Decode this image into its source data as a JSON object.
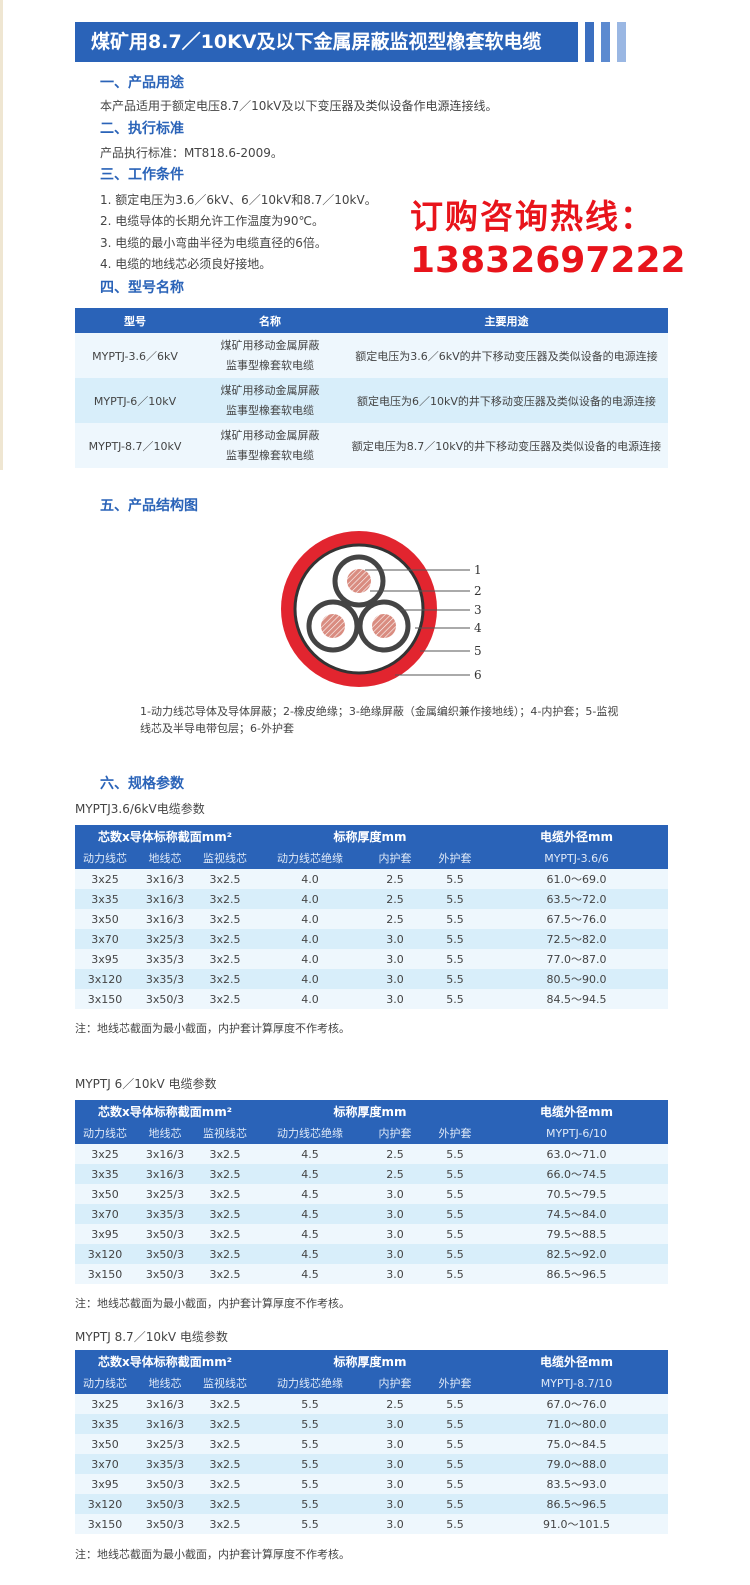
{
  "title": "煤矿用8.7／10KV及以下金属屏蔽监视型橡套软电缆",
  "colors": {
    "brand": "#2a63b8",
    "hotline": "#e8141b",
    "row_light": "#eef7fd",
    "row_dark": "#d8eefa"
  },
  "sections": {
    "s1": {
      "heading": "一、产品用途",
      "text": "本产品适用于额定电压8.7／10kV及以下变压器及类似设备作电源连接线。"
    },
    "s2": {
      "heading": "二、执行标准",
      "text": "产品执行标准：MT818.6-2009。"
    },
    "s3": {
      "heading": "三、工作条件",
      "items": [
        "1. 额定电压为3.6／6kV、6／10kV和8.7／10kV。",
        "2. 电缆导体的长期允许工作温度为90℃。",
        "3. 电缆的最小弯曲半径为电缆直径的6倍。",
        "4. 电缆的地线芯必须良好接地。"
      ]
    },
    "s4": {
      "heading": "四、型号名称"
    },
    "s5": {
      "heading": "五、产品结构图"
    },
    "s6": {
      "heading": "六、规格参数"
    }
  },
  "hotline": {
    "label": "订购咨询热线：",
    "number": "13832697222"
  },
  "model_table": {
    "headers": [
      "型号",
      "名称",
      "主要用途"
    ],
    "rows": [
      [
        "MYPTJ-3.6／6kV",
        "煤矿用移动金属屏蔽监事型橡套软电缆",
        "额定电压为3.6／6kV的井下移动变压器及类似设备的电源连接"
      ],
      [
        "MYPTJ-6／10kV",
        "煤矿用移动金属屏蔽监事型橡套软电缆",
        "额定电压为6／10kV的井下移动变压器及类似设备的电源连接"
      ],
      [
        "MYPTJ-8.7／10kV",
        "煤矿用移动金属屏蔽监事型橡套软电缆",
        "额定电压为8.7／10kV的井下移动变压器及类似设备的电源连接"
      ]
    ]
  },
  "diagram": {
    "labels": [
      "1",
      "2",
      "3",
      "4",
      "5",
      "6"
    ],
    "legend": "1-动力线芯导体及导体屏蔽；2-橡皮绝缘；3-绝缘屏蔽（金属编织兼作接地线）；4-内护套；5-监视线芯及半导电带包层；6-外护套"
  },
  "spec_header": {
    "g1": "芯数x导体标称截面mm²",
    "g2": "标称厚度mm",
    "g3": "电缆外径mm",
    "cols": [
      "动力线芯",
      "地线芯",
      "监视线芯",
      "动力线芯绝缘",
      "内护套",
      "外护套"
    ]
  },
  "spec_tables": [
    {
      "label": "MYPTJ3.6/6kV电缆参数",
      "model": "MYPTJ-3.6/6",
      "rows": [
        [
          "3x25",
          "3x16/3",
          "3x2.5",
          "4.0",
          "2.5",
          "5.5",
          "61.0～69.0"
        ],
        [
          "3x35",
          "3x16/3",
          "3x2.5",
          "4.0",
          "2.5",
          "5.5",
          "63.5～72.0"
        ],
        [
          "3x50",
          "3x16/3",
          "3x2.5",
          "4.0",
          "2.5",
          "5.5",
          "67.5～76.0"
        ],
        [
          "3x70",
          "3x25/3",
          "3x2.5",
          "4.0",
          "3.0",
          "5.5",
          "72.5～82.0"
        ],
        [
          "3x95",
          "3x35/3",
          "3x2.5",
          "4.0",
          "3.0",
          "5.5",
          "77.0～87.0"
        ],
        [
          "3x120",
          "3x35/3",
          "3x2.5",
          "4.0",
          "3.0",
          "5.5",
          "80.5～90.0"
        ],
        [
          "3x150",
          "3x50/3",
          "3x2.5",
          "4.0",
          "3.0",
          "5.5",
          "84.5～94.5"
        ]
      ],
      "note": "注：地线芯截面为最小截面，内护套计算厚度不作考核。"
    },
    {
      "label": "MYPTJ 6／10kV 电缆参数",
      "model": "MYPTJ-6/10",
      "rows": [
        [
          "3x25",
          "3x16/3",
          "3x2.5",
          "4.5",
          "2.5",
          "5.5",
          "63.0～71.0"
        ],
        [
          "3x35",
          "3x16/3",
          "3x2.5",
          "4.5",
          "2.5",
          "5.5",
          "66.0～74.5"
        ],
        [
          "3x50",
          "3x25/3",
          "3x2.5",
          "4.5",
          "3.0",
          "5.5",
          "70.5～79.5"
        ],
        [
          "3x70",
          "3x35/3",
          "3x2.5",
          "4.5",
          "3.0",
          "5.5",
          "74.5～84.0"
        ],
        [
          "3x95",
          "3x50/3",
          "3x2.5",
          "4.5",
          "3.0",
          "5.5",
          "79.5～88.5"
        ],
        [
          "3x120",
          "3x50/3",
          "3x2.5",
          "4.5",
          "3.0",
          "5.5",
          "82.5～92.0"
        ],
        [
          "3x150",
          "3x50/3",
          "3x2.5",
          "4.5",
          "3.0",
          "5.5",
          "86.5～96.5"
        ]
      ],
      "note": "注：地线芯截面为最小截面，内护套计算厚度不作考核。"
    },
    {
      "label": "MYPTJ 8.7／10kV 电缆参数",
      "model": "MYPTJ-8.7/10",
      "rows": [
        [
          "3x25",
          "3x16/3",
          "3x2.5",
          "5.5",
          "2.5",
          "5.5",
          "67.0～76.0"
        ],
        [
          "3x35",
          "3x16/3",
          "3x2.5",
          "5.5",
          "3.0",
          "5.5",
          "71.0～80.0"
        ],
        [
          "3x50",
          "3x25/3",
          "3x2.5",
          "5.5",
          "3.0",
          "5.5",
          "75.0～84.5"
        ],
        [
          "3x70",
          "3x35/3",
          "3x2.5",
          "5.5",
          "3.0",
          "5.5",
          "79.0～88.0"
        ],
        [
          "3x95",
          "3x50/3",
          "3x2.5",
          "5.5",
          "3.0",
          "5.5",
          "83.5～93.0"
        ],
        [
          "3x120",
          "3x50/3",
          "3x2.5",
          "5.5",
          "3.0",
          "5.5",
          "86.5～96.5"
        ],
        [
          "3x150",
          "3x50/3",
          "3x2.5",
          "5.5",
          "3.0",
          "5.5",
          "91.0～101.5"
        ]
      ],
      "note": "注：地线芯截面为最小截面，内护套计算厚度不作考核。"
    }
  ]
}
